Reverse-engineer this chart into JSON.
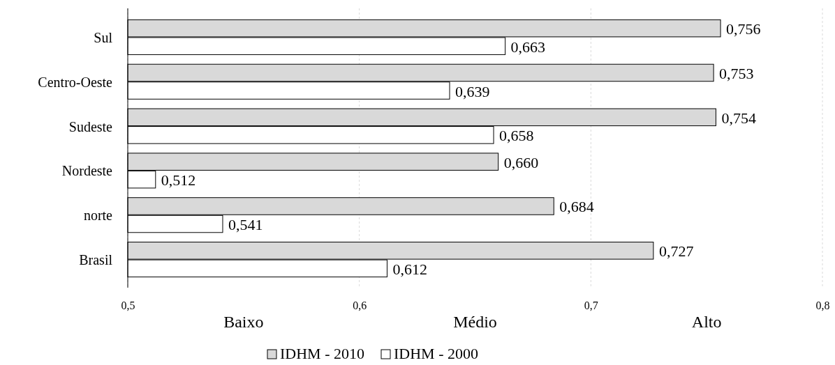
{
  "chart_data": {
    "type": "bar",
    "orientation": "horizontal",
    "categories": [
      "Sul",
      "Centro-Oeste",
      "Sudeste",
      "Nordeste",
      "norte",
      "Brasil"
    ],
    "series": [
      {
        "name": "IDHM - 2010",
        "color": "#d9d9d9",
        "values": [
          0.756,
          0.753,
          0.754,
          0.66,
          0.684,
          0.727
        ],
        "value_labels": [
          "0,756",
          "0,753",
          "0,754",
          "0,660",
          "0,684",
          "0,727"
        ]
      },
      {
        "name": "IDHM - 2000",
        "color": "#ffffff",
        "values": [
          0.663,
          0.639,
          0.658,
          0.512,
          0.541,
          0.612
        ],
        "value_labels": [
          "0,663",
          "0,639",
          "0,658",
          "0,512",
          "0,541",
          "0,612"
        ]
      }
    ],
    "xlim": [
      0.5,
      0.8
    ],
    "xticks": [
      {
        "value": 0.5,
        "label": "0,5"
      },
      {
        "value": 0.6,
        "label": "0,6"
      },
      {
        "value": 0.7,
        "label": "0,7"
      },
      {
        "value": 0.8,
        "label": "0,8"
      }
    ],
    "annotations": [
      "Baixo",
      "Médio",
      "Alto"
    ],
    "grid": "x",
    "legend": "bottom"
  }
}
